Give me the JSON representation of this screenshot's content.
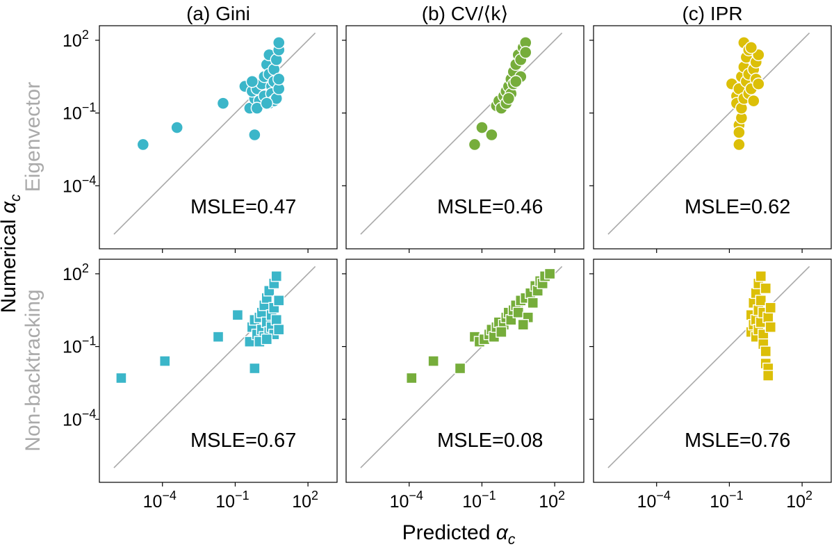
{
  "figure": {
    "xlabel_main": "Predicted ",
    "xlabel_sym": "α",
    "xlabel_sub": "c",
    "ylabel_main": "Numerical ",
    "ylabel_sym": "α",
    "ylabel_sub": "c",
    "row_labels": [
      "Eigenvector",
      "Non-backtracking"
    ],
    "col_titles": [
      "(a) Gini",
      "(b) CV/⟨k⟩",
      "(c) IPR"
    ],
    "colors": [
      "#3bb6c9",
      "#76ad3b",
      "#dcbf08"
    ]
  },
  "chart_data": [
    {
      "type": "scatter",
      "row": 0,
      "col": 0,
      "marker": "circle",
      "title": "(a) Gini",
      "annotation": "MSLE=0.47",
      "xlim_log10": [
        -6.6,
        3.2
      ],
      "ylim_log10": [
        -6.6,
        2.6
      ],
      "x_ticks": [
        -4,
        -1,
        2
      ],
      "y_ticks": [
        -4,
        -1,
        2
      ],
      "tick_base": "10",
      "tick_labels": [
        "−4",
        "−1",
        "2"
      ],
      "identity_line_log10": [
        -6.0,
        2.3
      ],
      "points_log10": [
        [
          -4.8,
          -2.3
        ],
        [
          -3.4,
          -1.6
        ],
        [
          -1.5,
          -0.6
        ],
        [
          -0.6,
          0.1
        ],
        [
          -0.2,
          -1.9
        ],
        [
          -0.4,
          -0.8
        ],
        [
          -0.2,
          -0.4
        ],
        [
          -0.3,
          -0.1
        ],
        [
          -0.1,
          0.0
        ],
        [
          0.0,
          -0.5
        ],
        [
          0.1,
          0.2
        ],
        [
          0.2,
          -0.3
        ],
        [
          0.2,
          0.5
        ],
        [
          0.3,
          1.0
        ],
        [
          0.4,
          1.4
        ],
        [
          0.4,
          0.6
        ],
        [
          0.4,
          -0.6
        ],
        [
          0.5,
          0.1
        ],
        [
          0.5,
          -0.2
        ],
        [
          0.6,
          0.3
        ],
        [
          0.6,
          -0.5
        ],
        [
          0.6,
          0.8
        ],
        [
          0.7,
          1.2
        ],
        [
          0.7,
          -0.4
        ],
        [
          0.8,
          0.0
        ],
        [
          0.8,
          1.6
        ],
        [
          0.8,
          0.4
        ],
        [
          0.8,
          1.9
        ],
        [
          -0.1,
          -0.8
        ],
        [
          0.3,
          -0.6
        ],
        [
          -0.3,
          0.3
        ]
      ]
    },
    {
      "type": "scatter",
      "row": 0,
      "col": 1,
      "marker": "circle",
      "title": "(b) CV/⟨k⟩",
      "annotation": "MSLE=0.46",
      "xlim_log10": [
        -6.6,
        3.2
      ],
      "ylim_log10": [
        -6.6,
        2.6
      ],
      "x_ticks": [
        -4,
        -1,
        2
      ],
      "y_ticks": [
        -4,
        -1,
        2
      ],
      "tick_base": "10",
      "tick_labels": [
        "−4",
        "−1",
        "2"
      ],
      "identity_line_log10": [
        -6.0,
        2.3
      ],
      "points_log10": [
        [
          -1.3,
          -2.3
        ],
        [
          -1.0,
          -1.6
        ],
        [
          -0.6,
          -1.9
        ],
        [
          -0.4,
          -0.7
        ],
        [
          -0.3,
          -0.5
        ],
        [
          -0.2,
          -0.8
        ],
        [
          -0.1,
          -0.3
        ],
        [
          0.0,
          -0.6
        ],
        [
          0.0,
          -0.1
        ],
        [
          0.1,
          0.1
        ],
        [
          0.2,
          -0.2
        ],
        [
          0.2,
          0.4
        ],
        [
          0.3,
          0.2
        ],
        [
          0.3,
          0.7
        ],
        [
          0.4,
          1.0
        ],
        [
          0.5,
          1.4
        ],
        [
          0.6,
          0.5
        ],
        [
          0.6,
          1.2
        ],
        [
          0.7,
          1.7
        ],
        [
          0.8,
          1.9
        ],
        [
          0.8,
          1.5
        ],
        [
          0.1,
          -0.4
        ],
        [
          0.4,
          0.3
        ]
      ]
    },
    {
      "type": "scatter",
      "row": 0,
      "col": 2,
      "marker": "circle",
      "title": "(c) IPR",
      "annotation": "MSLE=0.62",
      "xlim_log10": [
        -6.6,
        3.2
      ],
      "ylim_log10": [
        -6.6,
        2.6
      ],
      "x_ticks": [
        -4,
        -1,
        2
      ],
      "y_ticks": [
        -4,
        -1,
        2
      ],
      "tick_base": "10",
      "tick_labels": [
        "−4",
        "−1",
        "2"
      ],
      "identity_line_log10": [
        -6.0,
        2.3
      ],
      "points_log10": [
        [
          -0.9,
          0.2
        ],
        [
          -0.7,
          -0.3
        ],
        [
          -0.7,
          -0.6
        ],
        [
          -0.6,
          0.0
        ],
        [
          -0.6,
          -1.5
        ],
        [
          -0.6,
          -1.8
        ],
        [
          -0.6,
          -2.3
        ],
        [
          -0.5,
          -1.2
        ],
        [
          -0.5,
          0.5
        ],
        [
          -0.5,
          -0.8
        ],
        [
          -0.4,
          1.9
        ],
        [
          -0.4,
          0.9
        ],
        [
          -0.4,
          -0.4
        ],
        [
          -0.3,
          0.3
        ],
        [
          -0.3,
          1.3
        ],
        [
          -0.2,
          -0.2
        ],
        [
          -0.2,
          1.6
        ],
        [
          -0.2,
          0.6
        ],
        [
          -0.1,
          0.0
        ],
        [
          0.0,
          0.8
        ],
        [
          0.0,
          -0.5
        ],
        [
          0.1,
          1.1
        ],
        [
          0.1,
          0.4
        ],
        [
          0.2,
          1.4
        ],
        [
          0.2,
          0.2
        ],
        [
          -0.1,
          1.7
        ]
      ]
    },
    {
      "type": "scatter",
      "row": 1,
      "col": 0,
      "marker": "square",
      "title": "",
      "annotation": "MSLE=0.67",
      "xlim_log10": [
        -6.6,
        3.2
      ],
      "ylim_log10": [
        -6.6,
        2.6
      ],
      "x_ticks": [
        -4,
        -1,
        2
      ],
      "y_ticks": [
        -4,
        -1,
        2
      ],
      "tick_base": "10",
      "tick_labels": [
        "−4",
        "−1",
        "2"
      ],
      "identity_line_log10": [
        -6.0,
        2.3
      ],
      "points_log10": [
        [
          -5.7,
          -2.3
        ],
        [
          -3.9,
          -1.6
        ],
        [
          -1.7,
          -0.6
        ],
        [
          -0.9,
          0.3
        ],
        [
          -0.2,
          -1.9
        ],
        [
          -0.4,
          -0.8
        ],
        [
          -0.3,
          -0.2
        ],
        [
          -0.2,
          0.1
        ],
        [
          -0.1,
          -0.5
        ],
        [
          0.0,
          0.2
        ],
        [
          0.1,
          -0.3
        ],
        [
          0.1,
          0.4
        ],
        [
          0.2,
          -0.6
        ],
        [
          0.2,
          0.7
        ],
        [
          0.3,
          0.0
        ],
        [
          0.3,
          1.0
        ],
        [
          0.4,
          -0.4
        ],
        [
          0.4,
          1.3
        ],
        [
          0.5,
          0.3
        ],
        [
          0.5,
          -0.2
        ],
        [
          0.6,
          1.6
        ],
        [
          0.6,
          0.6
        ],
        [
          0.6,
          -0.5
        ],
        [
          0.7,
          1.9
        ],
        [
          0.7,
          0.1
        ],
        [
          0.8,
          0.9
        ],
        [
          0.8,
          -0.3
        ],
        [
          0.0,
          -0.8
        ],
        [
          0.3,
          -0.7
        ]
      ]
    },
    {
      "type": "scatter",
      "row": 1,
      "col": 1,
      "marker": "square",
      "title": "",
      "annotation": "MSLE=0.08",
      "xlim_log10": [
        -6.6,
        3.2
      ],
      "ylim_log10": [
        -6.6,
        2.6
      ],
      "x_ticks": [
        -4,
        -1,
        2
      ],
      "y_ticks": [
        -4,
        -1,
        2
      ],
      "tick_base": "10",
      "tick_labels": [
        "−4",
        "−1",
        "2"
      ],
      "identity_line_log10": [
        -6.0,
        2.3
      ],
      "points_log10": [
        [
          -3.9,
          -2.3
        ],
        [
          -3.0,
          -1.6
        ],
        [
          -1.9,
          -1.9
        ],
        [
          -1.3,
          -0.6
        ],
        [
          -1.1,
          -0.8
        ],
        [
          -0.9,
          -0.7
        ],
        [
          -0.7,
          -0.5
        ],
        [
          -0.6,
          -0.3
        ],
        [
          -0.5,
          -0.6
        ],
        [
          -0.4,
          -0.2
        ],
        [
          -0.3,
          0.0
        ],
        [
          -0.1,
          -0.1
        ],
        [
          0.0,
          0.2
        ],
        [
          0.1,
          0.4
        ],
        [
          0.2,
          0.1
        ],
        [
          0.3,
          0.5
        ],
        [
          0.4,
          0.7
        ],
        [
          0.5,
          0.4
        ],
        [
          0.6,
          0.9
        ],
        [
          0.8,
          1.0
        ],
        [
          0.9,
          0.2
        ],
        [
          1.0,
          1.2
        ],
        [
          1.1,
          0.8
        ],
        [
          1.2,
          1.5
        ],
        [
          1.3,
          1.3
        ],
        [
          1.4,
          1.7
        ],
        [
          1.5,
          1.6
        ],
        [
          1.6,
          1.9
        ],
        [
          1.8,
          2.0
        ],
        [
          0.7,
          -0.1
        ],
        [
          -0.2,
          -0.4
        ]
      ]
    },
    {
      "type": "scatter",
      "row": 1,
      "col": 2,
      "marker": "square",
      "title": "",
      "annotation": "MSLE=0.76",
      "xlim_log10": [
        -6.6,
        3.2
      ],
      "ylim_log10": [
        -6.6,
        2.6
      ],
      "x_ticks": [
        -4,
        -1,
        2
      ],
      "y_ticks": [
        -4,
        -1,
        2
      ],
      "tick_base": "10",
      "tick_labels": [
        "−4",
        "−1",
        "2"
      ],
      "identity_line_log10": [
        -6.0,
        2.3
      ],
      "points_log10": [
        [
          -0.1,
          0.3
        ],
        [
          -0.1,
          -0.4
        ],
        [
          0.0,
          0.8
        ],
        [
          0.0,
          -0.1
        ],
        [
          0.1,
          1.2
        ],
        [
          0.1,
          0.1
        ],
        [
          0.1,
          -0.6
        ],
        [
          0.2,
          1.6
        ],
        [
          0.2,
          0.5
        ],
        [
          0.2,
          -0.3
        ],
        [
          0.3,
          1.9
        ],
        [
          0.3,
          0.9
        ],
        [
          0.3,
          0.0
        ],
        [
          0.4,
          -0.5
        ],
        [
          0.4,
          0.4
        ],
        [
          0.4,
          -0.9
        ],
        [
          0.5,
          1.4
        ],
        [
          0.5,
          -1.2
        ],
        [
          0.5,
          -1.7
        ],
        [
          0.6,
          -1.9
        ],
        [
          0.6,
          0.2
        ],
        [
          0.6,
          -2.2
        ],
        [
          0.7,
          -0.2
        ],
        [
          0.7,
          0.6
        ]
      ]
    }
  ]
}
